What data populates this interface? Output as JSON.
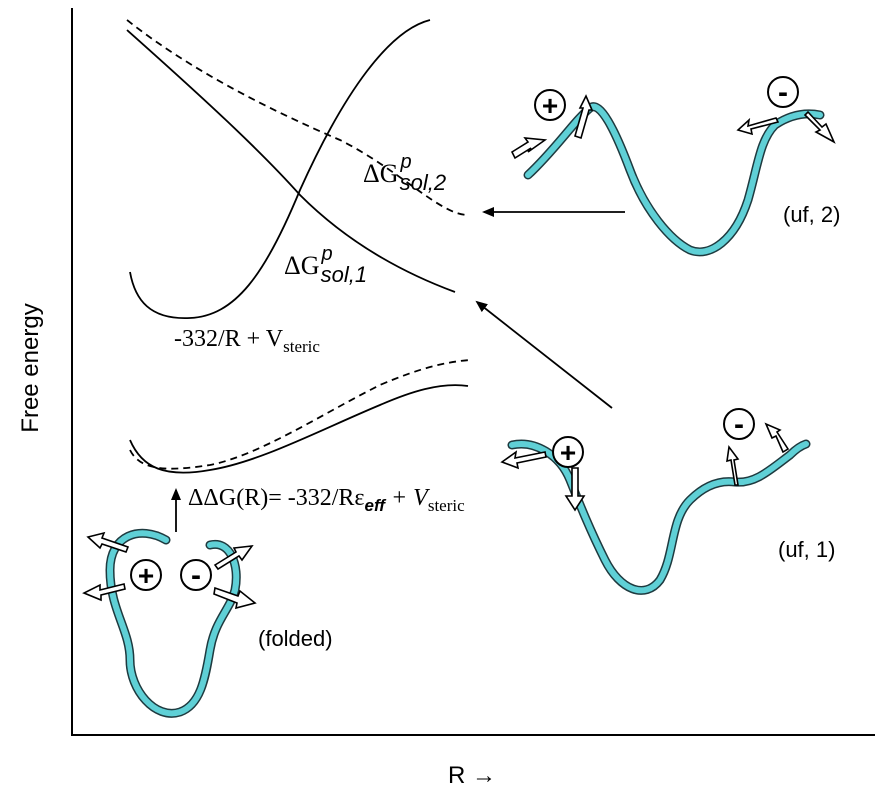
{
  "axes": {
    "y_label": "Free energy",
    "x_label": "R →"
  },
  "curve_labels": {
    "sol2": {
      "prefix": "ΔG",
      "sup": "p",
      "sub": "sol,2"
    },
    "sol1": {
      "prefix": "ΔG",
      "sup": "p",
      "sub": "sol,1"
    },
    "coulomb": {
      "main": "-332/R + V",
      "sub": "steric"
    },
    "ddg": {
      "lhs": "ΔΔG(R)= -332/Rε",
      "eps_sub": "eff",
      "plus": " + V",
      "sub": "steric"
    }
  },
  "states": {
    "uf2": "(uf, 2)",
    "uf1": "(uf, 1)",
    "folded": "(folded)"
  },
  "charges": {
    "plus": "+",
    "minus": "-"
  },
  "colors": {
    "ribbon": "#5fd0d6",
    "ribbon_edge": "#1e3a3f",
    "line": "#000000"
  }
}
